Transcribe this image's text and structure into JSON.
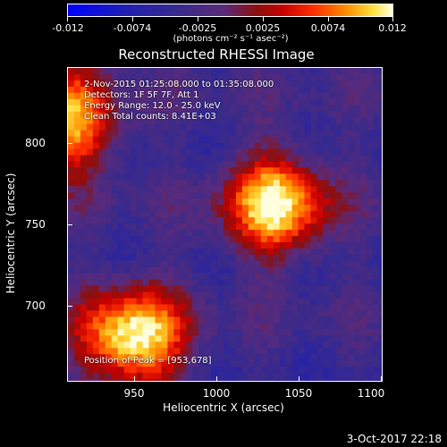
{
  "colorbar": {
    "tick_labels": [
      "-0.012",
      "-0.0074",
      "-0.0025",
      "0.0025",
      "0.0074",
      "0.012"
    ],
    "units": "(photons cm⁻² s⁻¹ asec⁻²)",
    "range": [
      -0.012,
      0.012
    ]
  },
  "title": "Reconstructed RHESSI Image",
  "annotations": {
    "time": "2-Nov-2015 01:25:08.000 to 01:35:08.000",
    "detectors": "Detectors: 1F 5F 7F, Att 1",
    "energy": "Energy Range: 12.0 - 25.0 keV",
    "method": "Clean     Total counts: 8.41E+03",
    "peak": "Position of Peak = [953,678]"
  },
  "axes": {
    "xlabel": "Heliocentric X (arcsec)",
    "ylabel": "Heliocentric Y (arcsec)",
    "xticks": [
      "950",
      "1000",
      "1050",
      "1100"
    ],
    "yticks": [
      "800",
      "750",
      "700"
    ],
    "xrange": [
      913,
      1105
    ],
    "yrange": [
      652,
      844
    ]
  },
  "stamp": "3-Oct-2017 22:18",
  "chart_data": {
    "type": "heatmap",
    "title": "Reconstructed RHESSI Image",
    "xlabel": "Heliocentric X (arcsec)",
    "ylabel": "Heliocentric Y (arcsec)",
    "xlim": [
      913,
      1105
    ],
    "ylim": [
      652,
      844
    ],
    "zlim": [
      -0.012,
      0.012
    ],
    "sources": [
      {
        "x": 953,
        "y": 678,
        "peak": 0.012
      },
      {
        "x": 1040,
        "y": 760,
        "peak": 0.011
      },
      {
        "x": 913,
        "y": 810,
        "peak": 0.009
      }
    ]
  }
}
